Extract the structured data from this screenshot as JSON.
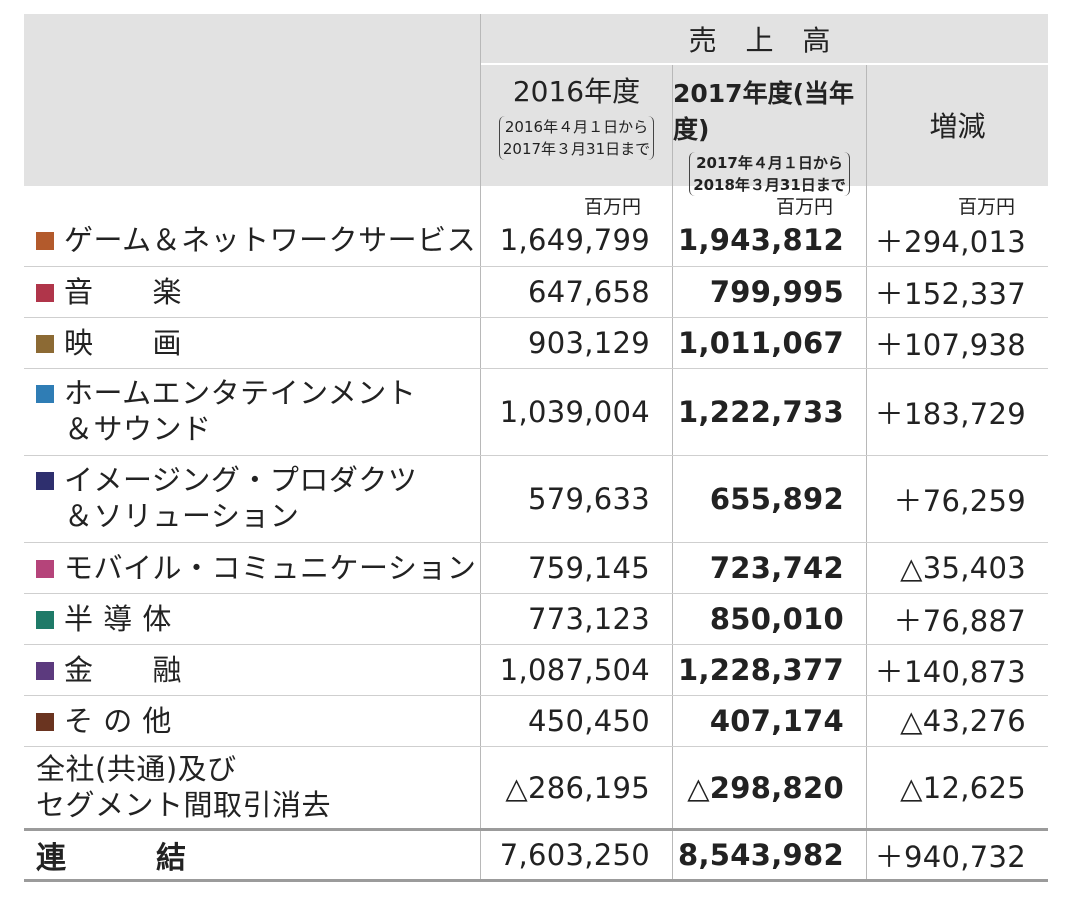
{
  "header": {
    "sales_title": "売 上 高",
    "col_prev_year": "2016年度",
    "col_prev_period_line1": "2016年４月１日から",
    "col_prev_period_line2": "2017年３月31日まで",
    "col_curr_year": "2017年度(当年度)",
    "col_curr_period_line1": "2017年４月１日から",
    "col_curr_period_line2": "2018年３月31日まで",
    "col_change": "増減"
  },
  "units": {
    "prev": "百万円",
    "curr": "百万円",
    "change": "百万円"
  },
  "rows": [
    {
      "label_line1": "ゲーム＆ネットワークサービス",
      "label_line2": "",
      "color": "#b35a2c",
      "prev": "1,649,799",
      "curr": "1,943,812",
      "change": "＋294,013"
    },
    {
      "label_line1": "音　　楽",
      "label_line2": "",
      "color": "#b0354a",
      "prev": "647,658",
      "curr": "799,995",
      "change": "＋152,337"
    },
    {
      "label_line1": "映　　画",
      "label_line2": "",
      "color": "#8c6a34",
      "prev": "903,129",
      "curr": "1,011,067",
      "change": "＋107,938"
    },
    {
      "label_line1": "ホームエンタテインメント",
      "label_line2": "＆サウンド",
      "color": "#2f7db5",
      "prev": "1,039,004",
      "curr": "1,222,733",
      "change": "＋183,729"
    },
    {
      "label_line1": "イメージング・プロダクツ",
      "label_line2": "＆ソリューション",
      "color": "#2e2f6e",
      "prev": "579,633",
      "curr": "655,892",
      "change": "＋76,259"
    },
    {
      "label_line1": "モバイル・コミュニケーション",
      "label_line2": "",
      "color": "#b5447a",
      "prev": "759,145",
      "curr": "723,742",
      "change": "△35,403"
    },
    {
      "label_line1": "半 導 体",
      "label_line2": "",
      "color": "#1f7a68",
      "prev": "773,123",
      "curr": "850,010",
      "change": "＋76,887"
    },
    {
      "label_line1": "金　　融",
      "label_line2": "",
      "color": "#5c3a7e",
      "prev": "1,087,504",
      "curr": "1,228,377",
      "change": "＋140,873"
    },
    {
      "label_line1": "そ の 他",
      "label_line2": "",
      "color": "#6a3420",
      "prev": "450,450",
      "curr": "407,174",
      "change": "△43,276"
    }
  ],
  "elimination": {
    "label_line1": "全社(共通)及び",
    "label_line2": "セグメント間取引消去",
    "prev": "△286,195",
    "curr": "△298,820",
    "change": "△12,625"
  },
  "total": {
    "label": "連　　　結",
    "prev": "7,603,250",
    "curr": "8,543,982",
    "change": "＋940,732"
  }
}
